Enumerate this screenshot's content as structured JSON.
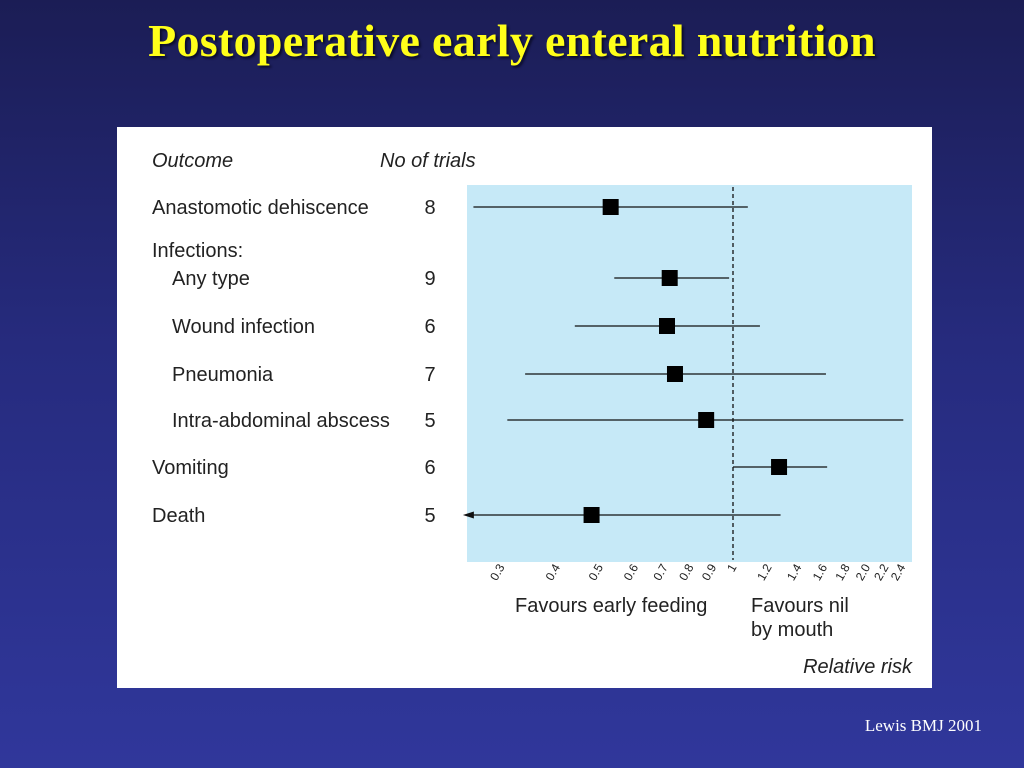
{
  "slide": {
    "title": "Postoperative early enteral nutrition",
    "citation": "Lewis BMJ 2001"
  },
  "colors": {
    "background": "#262b7e",
    "title": "#ffff1a",
    "plot_area": "#c6e9f7",
    "marker": "#000000"
  },
  "chart_data": {
    "type": "forest",
    "column_headers": {
      "outcome": "Outcome",
      "trials": "No of trials"
    },
    "scale": "log",
    "xlim": [
      0.25,
      2.6
    ],
    "reference_line": 1,
    "x_ticks": [
      "0.3",
      "0.4",
      "0.5",
      "0.6",
      "0.7",
      "0.8",
      "0.9",
      "1",
      "1.2",
      "1.4",
      "1.6",
      "1.8",
      "2.0",
      "2.2",
      "2.4"
    ],
    "xlabel": "Relative risk",
    "favours_left": "Favours early feeding",
    "favours_right": [
      "Favours nil",
      "by mouth"
    ],
    "rows": [
      {
        "label": "Anastomotic dehiscence",
        "trials": "8",
        "rr": 0.53,
        "lower": 0.26,
        "upper": 1.08,
        "indent": false,
        "heading": false
      },
      {
        "label": "Infections:",
        "trials": "",
        "heading": true,
        "indent": false
      },
      {
        "label": "Any type",
        "trials": "9",
        "rr": 0.72,
        "lower": 0.54,
        "upper": 0.98,
        "indent": true,
        "heading": false
      },
      {
        "label": "Wound infection",
        "trials": "6",
        "rr": 0.71,
        "lower": 0.44,
        "upper": 1.15,
        "indent": true,
        "heading": false
      },
      {
        "label": "Pneumonia",
        "trials": "7",
        "rr": 0.74,
        "lower": 0.34,
        "upper": 1.62,
        "indent": true,
        "heading": false
      },
      {
        "label": "Intra-abdominal abscess",
        "trials": "5",
        "rr": 0.87,
        "lower": 0.31,
        "upper": 2.42,
        "indent": true,
        "heading": false
      },
      {
        "label": "Vomiting",
        "trials": "6",
        "rr": 1.27,
        "lower": 1.0,
        "upper": 1.63,
        "indent": false,
        "heading": false
      },
      {
        "label": "Death",
        "trials": "5",
        "rr": 0.48,
        "lower": 0.25,
        "upper": 1.28,
        "indent": false,
        "heading": false,
        "lower_arrow": true
      }
    ]
  }
}
